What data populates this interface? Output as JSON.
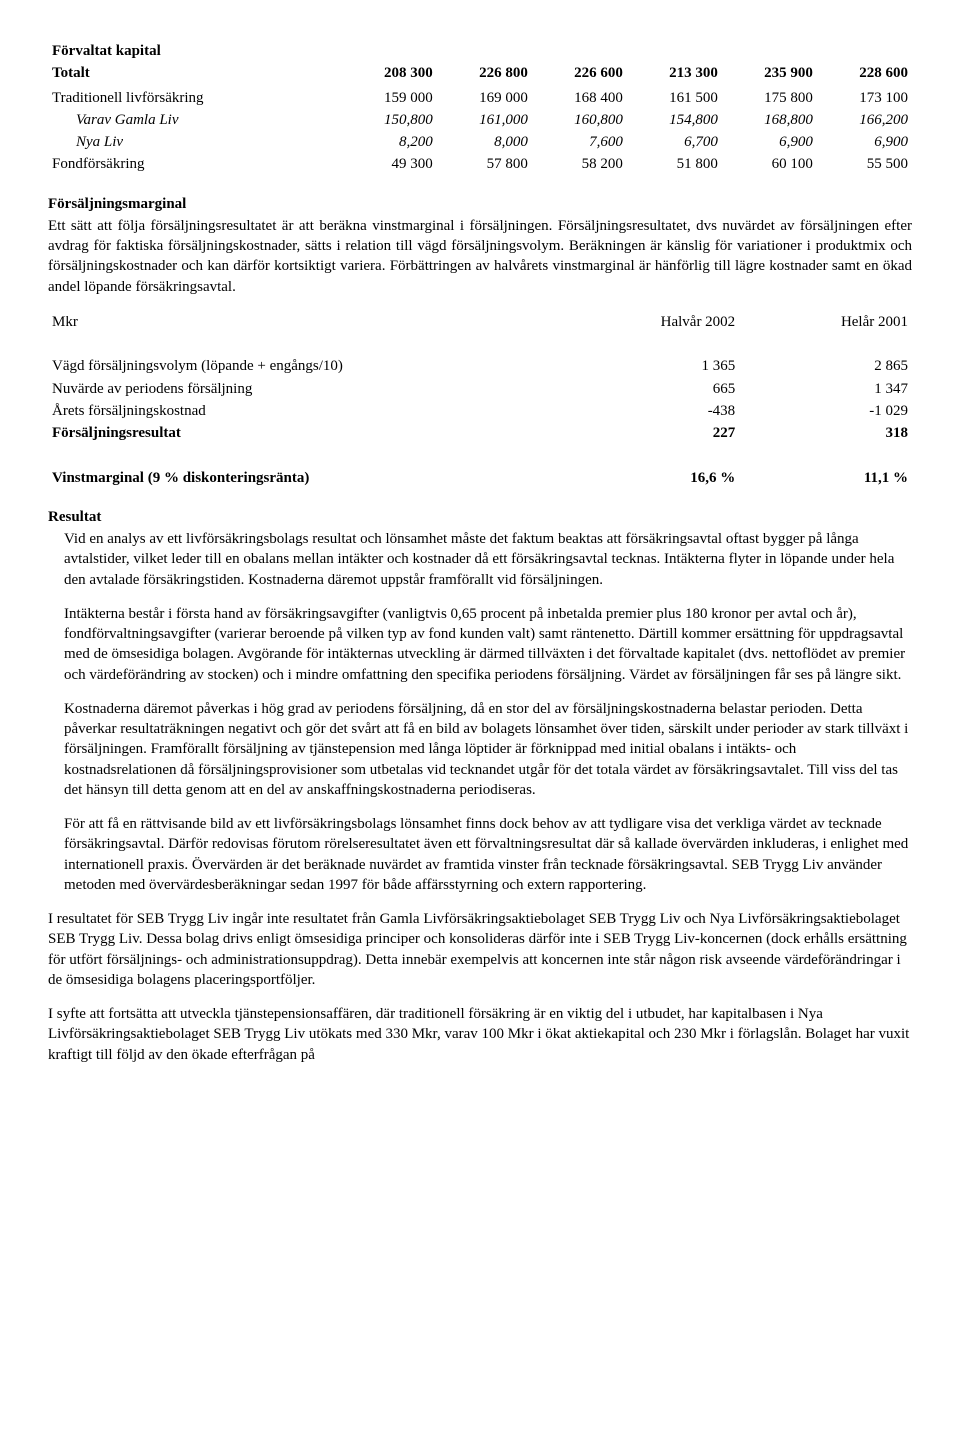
{
  "table1": {
    "rows": [
      {
        "label": "Förvaltat kapital",
        "cls": "bold",
        "vals": [
          "",
          "",
          "",
          "",
          "",
          ""
        ]
      },
      {
        "label": "Totalt",
        "cls": "bold",
        "vals": [
          "208 300",
          "226 800",
          "226 600",
          "213 300",
          "235 900",
          "228 600"
        ]
      },
      {
        "label": "",
        "cls": "",
        "vals": [
          "",
          "",
          "",
          "",
          "",
          ""
        ]
      },
      {
        "label": "Traditionell livförsäkring",
        "cls": "",
        "vals": [
          "159 000",
          "169 000",
          "168 400",
          "161 500",
          "175 800",
          "173 100"
        ]
      },
      {
        "label": "Varav Gamla Liv",
        "cls": "ind",
        "vals": [
          "150,800",
          "161,000",
          "160,800",
          "154,800",
          "168,800",
          "166,200"
        ]
      },
      {
        "label": "Nya Liv",
        "cls": "ind",
        "vals": [
          "8,200",
          "8,000",
          "7,600",
          "6,700",
          "6,900",
          "6,900"
        ]
      },
      {
        "label": "Fondförsäkring",
        "cls": "",
        "vals": [
          "49 300",
          "57 800",
          "58 200",
          "51 800",
          "60 100",
          "55 500"
        ]
      }
    ]
  },
  "margin_title": "Försäljningsmarginal",
  "margin_para": "Ett sätt att följa försäljningsresultatet är att beräkna vinstmarginal i försäljningen. Försäljningsresultatet, dvs nuvärdet av försäljningen efter avdrag för faktiska försäljningskostnader, sätts i relation till vägd försäljningsvolym. Beräkningen är känslig för variationer i produktmix och försäljningskostnader och kan därför kortsiktigt variera. Förbättringen av halvårets vinstmarginal är hänförlig till lägre kostnader samt en ökad andel löpande försäkringsavtal.",
  "table2": {
    "header": [
      "Mkr",
      "Halvår 2002",
      "Helår 2001"
    ],
    "rows": [
      {
        "label": "Vägd försäljningsvolym (löpande + engångs/10)",
        "v1": "1 365",
        "v2": "2 865",
        "cls": ""
      },
      {
        "label": "Nuvärde av periodens försäljning",
        "v1": "665",
        "v2": "1 347",
        "cls": ""
      },
      {
        "label": "Årets försäljningskostnad",
        "v1": "-438",
        "v2": "-1 029",
        "cls": ""
      },
      {
        "label": "Försäljningsresultat",
        "v1": "227",
        "v2": "318",
        "cls": "bold"
      }
    ],
    "footer": {
      "label": "Vinstmarginal (9 % diskonteringsränta)",
      "v1": "16,6 %",
      "v2": "11,1 %",
      "cls": "bold"
    }
  },
  "result_title": "Resultat",
  "paras": [
    "Vid en analys av ett livförsäkringsbolags resultat och lönsamhet måste det faktum beaktas att försäkringsavtal oftast bygger på långa avtalstider, vilket leder till en obalans mellan intäkter och kostnader då ett försäkringsavtal tecknas. Intäkterna flyter in löpande under hela den avtalade försäkringstiden. Kostnaderna däremot uppstår framförallt vid försäljningen.",
    "Intäkterna består i första hand av försäkringsavgifter (vanligtvis 0,65 procent på inbetalda premier plus 180 kronor per avtal och år), fondförvaltningsavgifter (varierar beroende på vilken typ av fond kunden valt) samt räntenetto. Därtill kommer ersättning för uppdragsavtal med de ömsesidiga bolagen. Avgörande för intäkternas utveckling är därmed tillväxten i det förvaltade kapitalet (dvs. nettoflödet av premier och värdeförändring av stocken) och i mindre omfattning den specifika periodens försäljning. Värdet av försäljningen får ses på längre sikt.",
    "Kostnaderna däremot påverkas i hög grad av periodens försäljning, då en stor del av försäljningskostnaderna belastar perioden. Detta påverkar resultaträkningen negativt och gör det svårt att få en bild av bolagets lönsamhet över tiden, särskilt under perioder av stark tillväxt i försäljningen. Framförallt försäljning av tjänstepension med långa löptider är förknippad med initial obalans i intäkts- och kostnadsrelationen då försäljningsprovisioner som utbetalas vid tecknandet utgår för det totala värdet av försäkringsavtalet. Till viss del tas det hänsyn till detta genom att en del av anskaffningskostnaderna periodiseras.",
    "För att få en rättvisande bild av ett livförsäkringsbolags lönsamhet finns dock behov av att tydligare visa det verkliga värdet av tecknade försäkringsavtal. Därför redovisas förutom rörelseresultatet även ett förvaltningsresultat där så kallade övervärden inkluderas, i enlighet med internationell praxis. Övervärden är det beräknade nuvärdet av framtida vinster från tecknade försäkringsavtal. SEB Trygg Liv använder metoden med övervärdesberäkningar sedan 1997 för både affärsstyrning och extern rapportering."
  ],
  "para_outer1": "I resultatet för SEB Trygg Liv ingår inte resultatet från Gamla Livförsäkringsaktiebolaget SEB Trygg Liv och Nya Livförsäkringsaktiebolaget SEB Trygg Liv. Dessa bolag drivs enligt ömsesidiga principer och konsolideras därför inte i SEB Trygg Liv-koncernen (dock erhålls ersättning för utfört försäljnings- och administrationsuppdrag). Detta innebär exempelvis att koncernen inte står någon risk avseende värdeförändringar i de ömsesidiga bolagens placeringsportföljer.",
  "para_outer2": "I syfte att fortsätta att utveckla tjänstepensionsaffären, där traditionell försäkring är en viktig del i utbudet, har kapitalbasen i Nya Livförsäkringsaktiebolaget SEB Trygg Liv utökats med 330 Mkr, varav 100 Mkr i ökat aktiekapital och 230 Mkr i förlagslån. Bolaget har vuxit kraftigt till följd av den ökade efterfrågan på"
}
